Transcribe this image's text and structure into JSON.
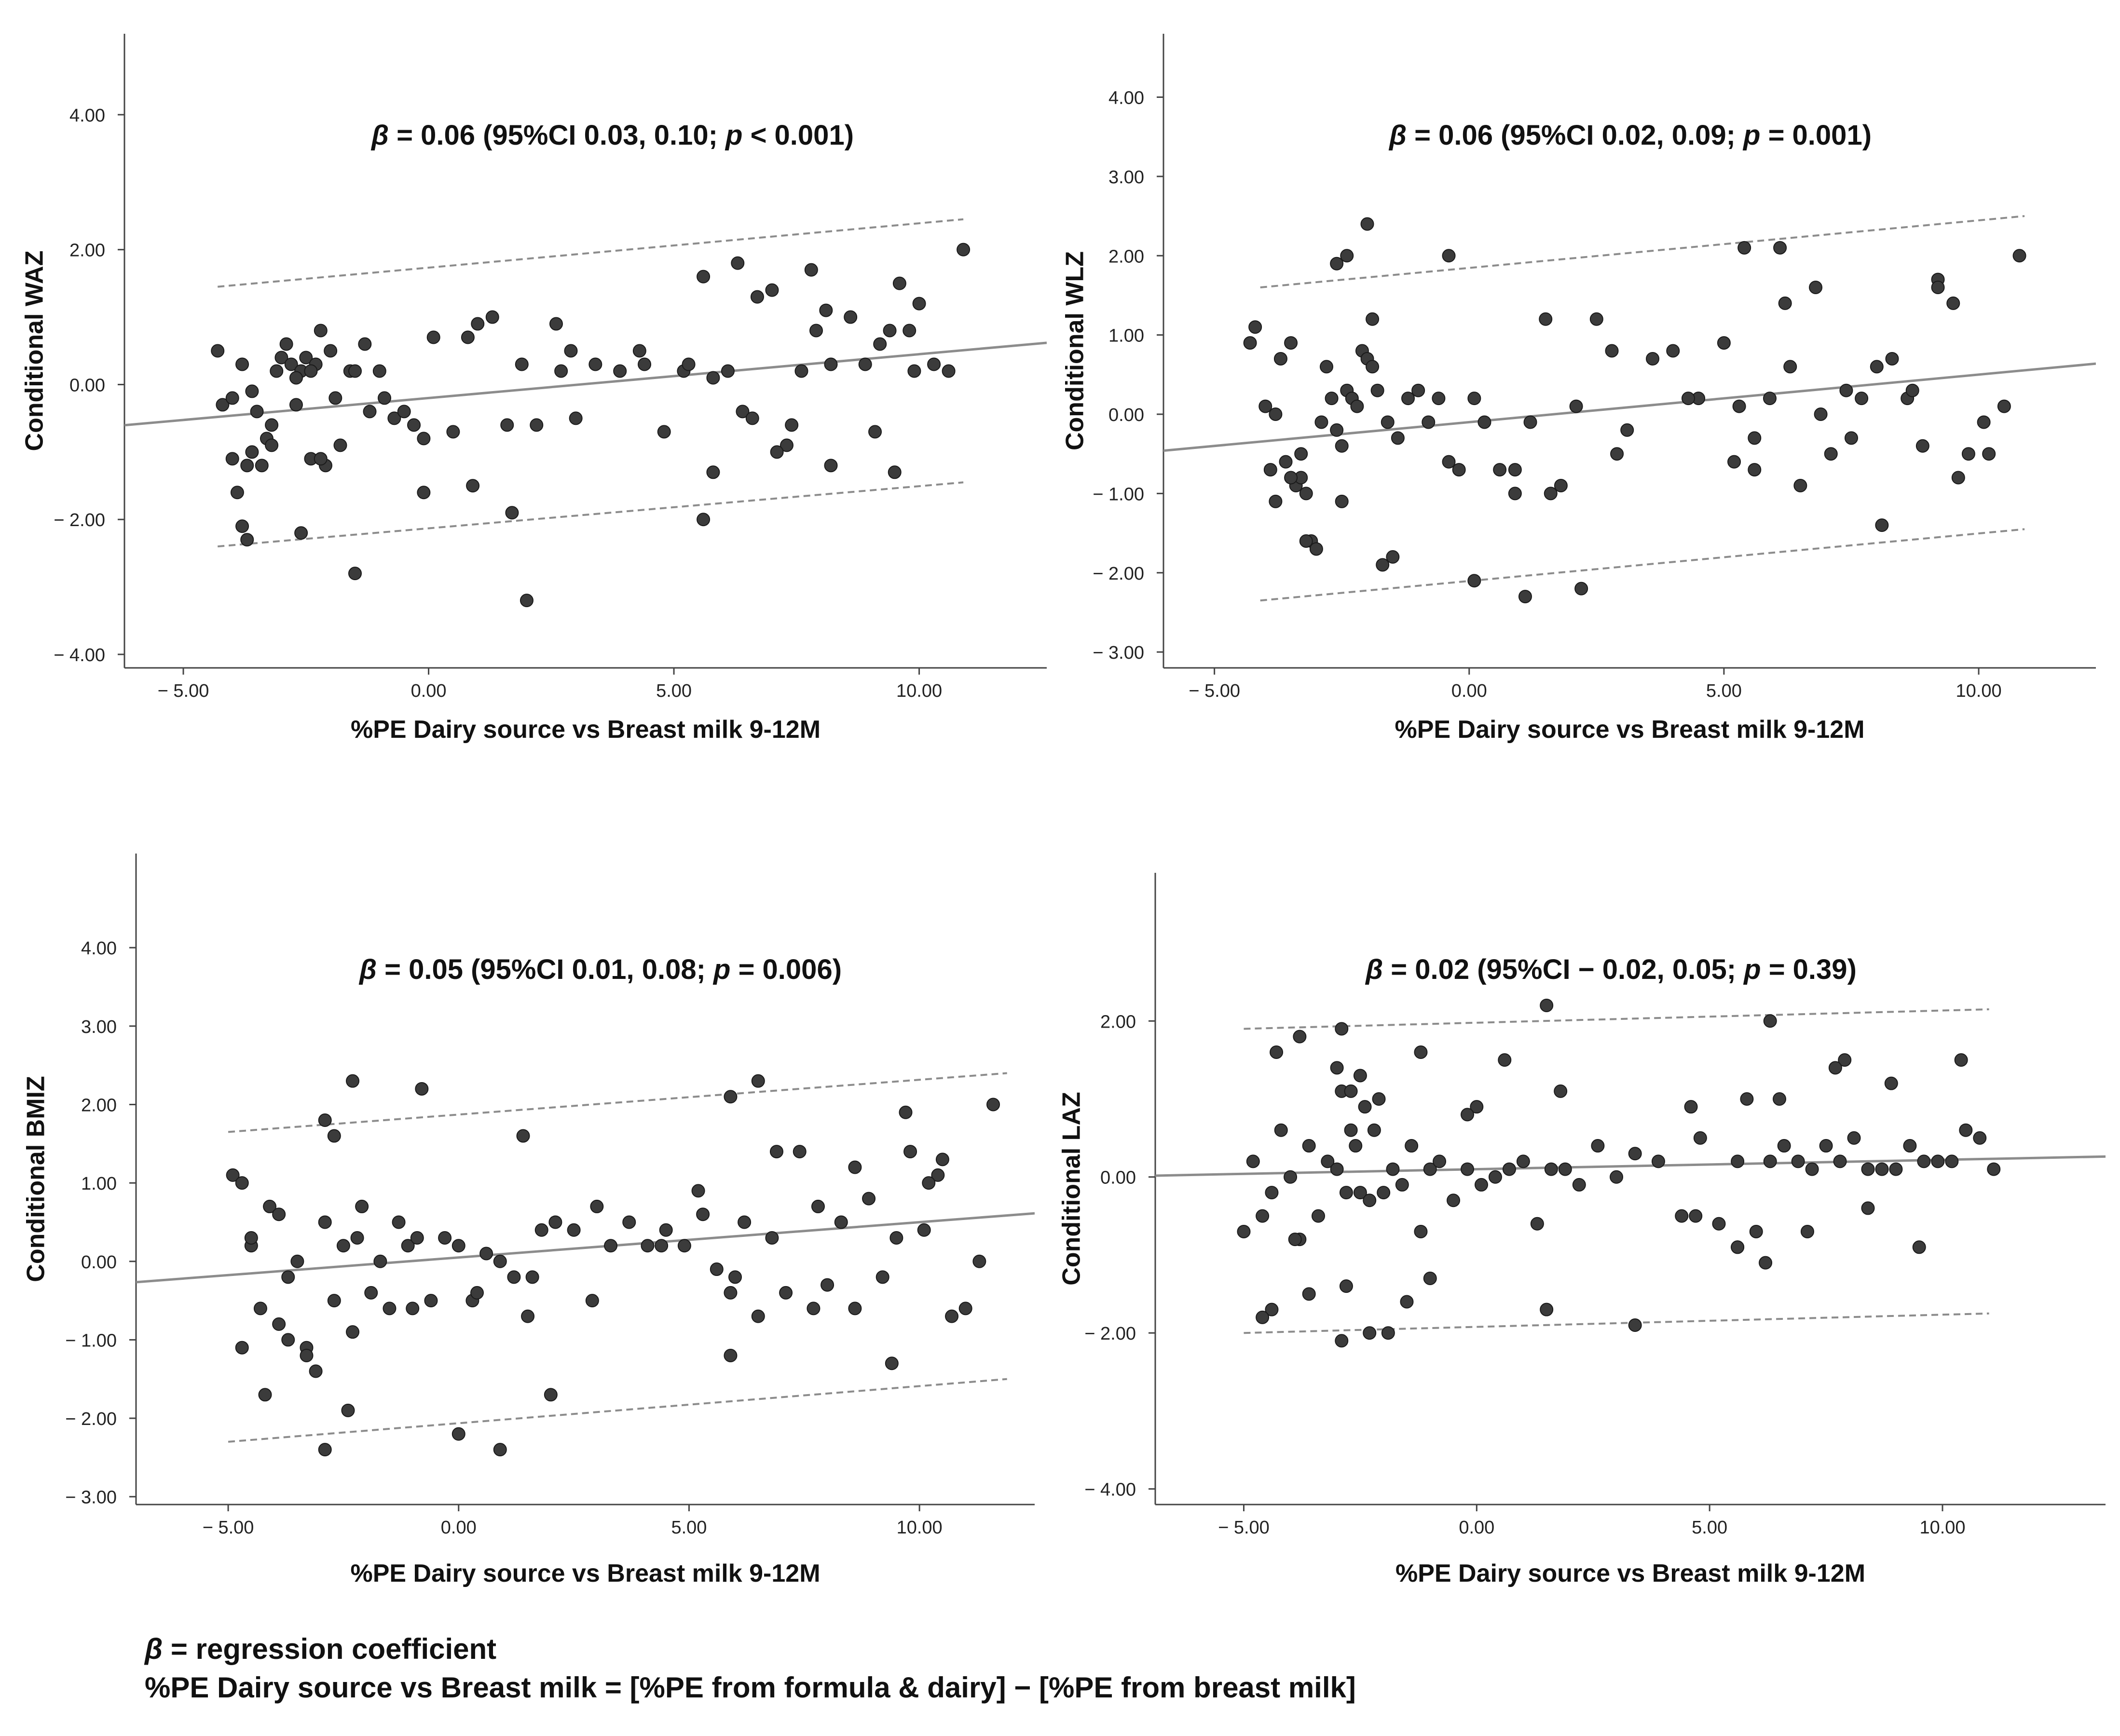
{
  "chart_data": [
    {
      "type": "scatter",
      "id": "waz",
      "title_parts": [
        "β",
        " = 0.06 (95%CI 0.03, 0.10; ",
        "p",
        " < 0.001)"
      ],
      "xlabel": "%PE Dairy source vs Breast milk 9-12M",
      "ylabel": "Conditional WAZ",
      "xlim": [
        -6.2,
        12.6
      ],
      "ylim": [
        -4.2,
        5.2
      ],
      "x_ticks": [
        -5,
        0,
        5,
        10
      ],
      "x_tick_labels": [
        "− 5.00",
        "0.00",
        "5.00",
        "10.00"
      ],
      "y_ticks": [
        4,
        2,
        0,
        -2,
        -4
      ],
      "y_tick_labels": [
        "4.00",
        "2.00",
        "0.00",
        "− 2.00",
        "− 4.00"
      ],
      "fit_line": {
        "intercept": -0.2,
        "slope": 0.065
      },
      "upper_band": {
        "x": [
          -4.3,
          10.9
        ],
        "y": [
          1.45,
          2.45
        ]
      },
      "lower_band": {
        "x": [
          -4.3,
          10.9
        ],
        "y": [
          -2.4,
          -1.45
        ]
      },
      "x": [
        -4.3,
        -4.2,
        -4.0,
        -3.9,
        -3.8,
        -3.7,
        -3.6,
        -3.5,
        -3.4,
        -3.3,
        -3.2,
        -3.1,
        -3.0,
        -2.9,
        -2.8,
        -2.7,
        -2.6,
        -2.5,
        -2.4,
        -2.3,
        -2.2,
        -2.1,
        -2.0,
        -1.9,
        -1.8,
        -1.6,
        -1.5,
        -1.3,
        -1.2,
        -1.0,
        -0.9,
        -0.7,
        -0.5,
        -0.3,
        -0.1,
        0.1,
        0.5,
        0.8,
        1.0,
        1.3,
        1.6,
        1.9,
        2.2,
        2.6,
        3.0,
        3.4,
        3.9,
        4.3,
        4.8,
        5.2,
        5.6,
        5.8,
        6.1,
        6.4,
        6.7,
        7.0,
        7.3,
        7.6,
        7.9,
        8.2,
        8.6,
        8.9,
        9.2,
        9.4,
        9.6,
        9.8,
        10.0,
        10.3,
        10.6,
        10.9,
        -4.0,
        -3.7,
        -3.2,
        -2.6,
        -2.2,
        -1.5,
        -0.1,
        0.9,
        1.7,
        2.0,
        2.9,
        5.6,
        5.8,
        6.6,
        7.1,
        8.2,
        9.1,
        9.9,
        -2.4,
        -3.8,
        -3.6,
        -2.7,
        2.7,
        4.4,
        5.3,
        6.3,
        7.4,
        7.8,
        8.1,
        9.5
      ],
      "y": [
        0.5,
        -0.3,
        -0.2,
        -1.6,
        0.3,
        -2.3,
        -0.1,
        -0.4,
        -1.2,
        -0.8,
        -0.9,
        0.2,
        0.4,
        0.6,
        0.3,
        -0.3,
        0.2,
        0.4,
        -1.1,
        0.3,
        0.8,
        -1.2,
        0.5,
        -0.2,
        -0.9,
        0.2,
        0.2,
        0.6,
        -0.4,
        0.2,
        -0.2,
        -0.5,
        -0.4,
        -0.6,
        -1.6,
        0.7,
        -0.7,
        0.7,
        0.9,
        1.0,
        -0.6,
        0.3,
        -0.6,
        0.9,
        -0.5,
        0.3,
        0.2,
        0.5,
        -0.7,
        0.2,
        1.6,
        0.1,
        0.2,
        -0.4,
        1.3,
        1.4,
        -0.9,
        0.2,
        0.8,
        0.3,
        1.0,
        0.3,
        0.6,
        0.8,
        1.5,
        0.8,
        1.2,
        0.3,
        0.2,
        2.0,
        -1.1,
        -1.2,
        -0.6,
        -2.2,
        -1.1,
        -2.8,
        -0.8,
        -1.5,
        -1.9,
        -3.2,
        0.5,
        -2.0,
        -1.3,
        -0.5,
        -1.0,
        -1.2,
        -0.7,
        0.2,
        0.2,
        -2.1,
        -1.0,
        0.1,
        0.2,
        0.3,
        0.3,
        1.8,
        -0.6,
        1.7,
        1.1,
        -1.3
      ]
    },
    {
      "type": "scatter",
      "id": "wlz",
      "title_parts": [
        "β",
        " = 0.06 (95%CI 0.02, 0.09; ",
        "p",
        " = 0.001)"
      ],
      "xlabel": "%PE Dairy source vs Breast milk 9-12M",
      "ylabel": "Conditional WLZ",
      "xlim": [
        -6.0,
        12.3
      ],
      "ylim": [
        -3.2,
        4.8
      ],
      "x_ticks": [
        -5,
        0,
        5,
        10
      ],
      "x_tick_labels": [
        "− 5.00",
        "0.00",
        "5.00",
        "10.00"
      ],
      "y_ticks": [
        4,
        3,
        2,
        1,
        0,
        -1,
        -2,
        -3
      ],
      "y_tick_labels": [
        "4.00",
        "3.00",
        "2.00",
        "1.00",
        "0.00",
        "− 1.00",
        "− 2.00",
        "− 3.00"
      ],
      "fit_line": {
        "intercept": -0.1,
        "slope": 0.06
      },
      "upper_band": {
        "x": [
          -4.1,
          10.9
        ],
        "y": [
          1.6,
          2.5
        ]
      },
      "lower_band": {
        "x": [
          -4.1,
          10.9
        ],
        "y": [
          -2.35,
          -1.45
        ]
      },
      "x": [
        -4.3,
        -4.2,
        -4.0,
        -3.9,
        -3.8,
        -3.7,
        -3.6,
        -3.5,
        -3.4,
        -3.3,
        -3.2,
        -3.1,
        -3.0,
        -2.9,
        -2.8,
        -2.7,
        -2.6,
        -2.5,
        -2.4,
        -2.3,
        -2.2,
        -2.1,
        -2.0,
        -1.9,
        -1.8,
        -1.6,
        -1.4,
        -1.2,
        -1.0,
        -0.8,
        -0.6,
        -0.4,
        -0.2,
        0.1,
        0.3,
        0.6,
        0.9,
        1.2,
        1.5,
        1.8,
        2.1,
        2.5,
        2.8,
        3.1,
        3.6,
        4.0,
        4.5,
        5.0,
        5.3,
        5.6,
        5.9,
        6.2,
        6.5,
        6.8,
        7.1,
        7.4,
        7.7,
        8.0,
        8.3,
        8.6,
        8.9,
        9.2,
        9.5,
        9.8,
        10.1,
        10.5,
        10.8,
        -2.4,
        -2.0,
        -1.9,
        -2.5,
        -3.2,
        -3.8,
        -1.5,
        -0.4,
        0.1,
        1.1,
        2.2,
        5.4,
        6.1,
        8.1,
        -3.5,
        -3.3,
        -2.6,
        -1.7,
        0.9,
        1.6,
        2.9,
        4.3,
        5.2,
        5.6,
        6.3,
        6.9,
        7.5,
        8.7,
        9.2,
        9.6,
        10.2
      ],
      "y": [
        0.9,
        1.1,
        0.1,
        -0.7,
        -1.1,
        0.7,
        -0.6,
        0.9,
        -0.9,
        -0.8,
        -1.0,
        -1.6,
        -1.7,
        -0.1,
        0.6,
        0.2,
        -0.2,
        -0.4,
        0.3,
        0.2,
        0.1,
        0.8,
        0.7,
        1.2,
        0.3,
        -0.1,
        -0.3,
        0.2,
        0.3,
        -0.1,
        0.2,
        -0.6,
        -0.7,
        0.2,
        -0.1,
        -0.7,
        -1.0,
        -0.1,
        1.2,
        -0.9,
        0.1,
        1.2,
        0.8,
        -0.2,
        0.7,
        0.8,
        0.2,
        0.9,
        0.1,
        -0.3,
        0.2,
        1.4,
        -0.9,
        1.6,
        -0.5,
        0.3,
        0.2,
        0.6,
        0.7,
        0.2,
        -0.4,
        1.7,
        1.4,
        -0.5,
        -0.1,
        0.1,
        2.0,
        2.0,
        2.4,
        0.6,
        -1.1,
        -1.6,
        0.0,
        -1.8,
        2.0,
        -2.1,
        -2.3,
        -2.2,
        2.1,
        2.1,
        -1.4,
        -0.8,
        -0.5,
        1.9,
        -1.9,
        -0.7,
        -1.0,
        -0.5,
        0.2,
        -0.6,
        -0.7,
        0.6,
        0.0,
        -0.3,
        0.3,
        1.6,
        -0.8,
        -0.5
      ]
    },
    {
      "type": "scatter",
      "id": "bmiz",
      "title_parts": [
        "β",
        " = 0.05 (95%CI 0.01, 0.08; ",
        "p",
        " = 0.006)"
      ],
      "xlabel": "%PE Dairy source vs Breast milk 9-12M",
      "ylabel": "Conditional BMIZ",
      "xlim": [
        -7.0,
        12.5
      ],
      "ylim": [
        -3.1,
        5.2
      ],
      "x_ticks": [
        -5,
        0,
        5,
        10
      ],
      "x_tick_labels": [
        "− 5.00",
        "0.00",
        "5.00",
        "10.00"
      ],
      "y_ticks": [
        4,
        3,
        2,
        1,
        0,
        -1,
        -2,
        -3
      ],
      "y_tick_labels": [
        "4.00",
        "3.00",
        "2.00",
        "1.00",
        "0.00",
        "− 1.00",
        "− 2.00",
        "− 3.00"
      ],
      "fit_line": {
        "intercept": 0.05,
        "slope": 0.045
      },
      "upper_band": {
        "x": [
          -5.0,
          11.9
        ],
        "y": [
          1.65,
          2.4
        ]
      },
      "lower_band": {
        "x": [
          -5.0,
          11.9
        ],
        "y": [
          -2.3,
          -1.5
        ]
      },
      "x": [
        -4.9,
        -4.7,
        -4.5,
        -4.3,
        -4.1,
        -3.9,
        -3.7,
        -3.5,
        -3.3,
        -3.1,
        -2.9,
        -2.7,
        -2.5,
        -2.3,
        -2.1,
        -1.9,
        -1.7,
        -1.5,
        -1.3,
        -1.1,
        -0.9,
        -0.6,
        -0.3,
        0.0,
        0.3,
        0.6,
        0.9,
        1.2,
        1.5,
        1.8,
        2.1,
        2.5,
        2.9,
        3.3,
        3.7,
        4.1,
        4.5,
        4.9,
        5.3,
        5.6,
        5.9,
        6.2,
        6.5,
        6.8,
        7.1,
        7.4,
        7.7,
        8.0,
        8.3,
        8.6,
        8.9,
        9.2,
        9.5,
        9.8,
        10.1,
        10.4,
        10.7,
        11.0,
        11.3,
        11.6,
        -2.3,
        -0.8,
        -2.9,
        1.4,
        5.9,
        6.5,
        -4.7,
        -4.5,
        -3.3,
        -2.9,
        -2.4,
        0.0,
        0.9,
        2.0,
        5.9,
        9.4,
        -4.2,
        -3.7,
        -2.2,
        -1.0,
        0.4,
        1.6,
        3.0,
        4.4,
        5.2,
        6.0,
        6.9,
        7.8,
        8.6,
        9.7,
        10.2,
        10.5,
        -2.7,
        -3.9
      ],
      "y": [
        1.1,
        -1.1,
        0.2,
        -0.6,
        0.7,
        -0.8,
        -0.2,
        0.0,
        -1.1,
        -1.4,
        0.5,
        -0.5,
        0.2,
        -0.9,
        0.7,
        -0.4,
        0.0,
        -0.6,
        0.5,
        0.2,
        0.3,
        -0.5,
        0.3,
        0.2,
        -0.5,
        0.1,
        0.0,
        -0.2,
        -0.7,
        0.4,
        0.5,
        0.4,
        -0.5,
        0.2,
        0.5,
        0.2,
        0.4,
        0.2,
        0.6,
        -0.1,
        -0.4,
        0.5,
        -0.7,
        0.3,
        -0.4,
        1.4,
        -0.6,
        -0.3,
        0.5,
        -0.6,
        0.8,
        -0.2,
        0.3,
        1.4,
        0.4,
        1.1,
        -0.7,
        -0.6,
        0.0,
        2.0,
        2.3,
        2.2,
        1.8,
        1.6,
        2.1,
        2.3,
        1.0,
        0.3,
        -1.2,
        -2.4,
        -1.9,
        -2.2,
        -2.4,
        -1.7,
        -1.2,
        -1.3,
        -1.7,
        -1.0,
        0.3,
        -0.6,
        -0.4,
        -0.2,
        0.7,
        0.2,
        0.9,
        -0.2,
        1.4,
        0.7,
        1.2,
        1.9,
        1.0,
        1.3,
        1.6,
        0.6
      ]
    },
    {
      "type": "scatter",
      "id": "laz",
      "title_parts": [
        "β",
        " = 0.02 (95%CI − 0.02, 0.05; ",
        "p",
        " = 0.39)"
      ],
      "xlabel": "%PE Dairy source vs Breast milk 9-12M",
      "ylabel": "Conditional LAZ",
      "xlim": [
        -6.9,
        13.5
      ],
      "ylim": [
        -4.2,
        3.9
      ],
      "x_ticks": [
        -5,
        0,
        5,
        10
      ],
      "x_tick_labels": [
        "− 5.00",
        "0.00",
        "5.00",
        "10.00"
      ],
      "y_ticks": [
        2,
        0,
        -2,
        -4
      ],
      "y_tick_labels": [
        "2.00",
        "0.00",
        "− 2.00",
        "− 4.00"
      ],
      "fit_line": {
        "intercept": 0.1,
        "slope": 0.012
      },
      "upper_band": {
        "x": [
          -5.0,
          11.0
        ],
        "y": [
          1.9,
          2.15
        ]
      },
      "lower_band": {
        "x": [
          -5.0,
          11.0
        ],
        "y": [
          -2.0,
          -1.75
        ]
      },
      "x": [
        -5.0,
        -4.8,
        -4.6,
        -4.4,
        -4.2,
        -4.0,
        -3.8,
        -3.6,
        -3.4,
        -3.2,
        -3.0,
        -2.9,
        -2.8,
        -2.7,
        -2.6,
        -2.5,
        -2.4,
        -2.3,
        -2.2,
        -2.0,
        -1.8,
        -1.6,
        -1.4,
        -1.2,
        -1.0,
        -0.8,
        -0.5,
        -0.2,
        0.1,
        0.4,
        0.7,
        1.0,
        1.3,
        1.6,
        1.9,
        2.2,
        2.6,
        3.0,
        3.4,
        3.9,
        4.4,
        4.8,
        5.2,
        5.6,
        6.0,
        6.3,
        6.6,
        6.9,
        7.2,
        7.5,
        7.8,
        8.1,
        8.4,
        8.7,
        9.0,
        9.3,
        9.6,
        9.9,
        10.2,
        10.5,
        10.8,
        11.1,
        -2.9,
        -3.0,
        -2.7,
        -4.3,
        -2.5,
        -2.1,
        -1.2,
        1.5,
        1.8,
        -2.9,
        -2.3,
        -3.6,
        -4.4,
        -4.6,
        -3.9,
        -1.5,
        0.0,
        5.6,
        6.2,
        7.1,
        8.4,
        9.5,
        0.6,
        1.5,
        3.4,
        4.7,
        5.8,
        6.3,
        7.9,
        8.9,
        10.4,
        -1.9,
        -2.8,
        4.6,
        5.6,
        6.5,
        7.7,
        -1.0,
        -0.2,
        -3.8
      ],
      "y": [
        -0.7,
        0.2,
        -0.5,
        -0.2,
        0.6,
        0.0,
        -0.8,
        0.4,
        -0.5,
        0.2,
        0.1,
        1.1,
        -0.2,
        0.6,
        0.4,
        -0.2,
        0.9,
        -0.3,
        0.6,
        -0.2,
        0.1,
        -0.1,
        0.4,
        -0.7,
        0.1,
        0.2,
        -0.3,
        0.1,
        -0.1,
        0.0,
        0.1,
        0.2,
        -0.6,
        0.1,
        0.1,
        -0.1,
        0.4,
        0.0,
        0.3,
        0.2,
        -0.5,
        0.5,
        -0.6,
        0.2,
        -0.7,
        0.2,
        0.4,
        0.2,
        0.1,
        0.4,
        0.2,
        0.5,
        0.1,
        0.1,
        0.1,
        0.4,
        0.2,
        0.2,
        0.2,
        0.6,
        0.5,
        0.1,
        1.9,
        1.4,
        1.1,
        1.6,
        1.3,
        1.0,
        1.6,
        2.2,
        1.1,
        -2.1,
        -2.0,
        -1.5,
        -1.7,
        -1.8,
        -0.8,
        -1.6,
        0.9,
        -0.9,
        -1.1,
        -0.7,
        -0.4,
        -0.9,
        1.5,
        -1.7,
        -1.9,
        -0.5,
        1.0,
        2.0,
        1.5,
        1.2,
        1.5,
        -2.0,
        -1.4,
        0.9,
        -0.9,
        1.0,
        1.4,
        -1.3,
        0.8,
        1.8
      ]
    }
  ],
  "footnotes": {
    "line1_symbol": "β",
    "line1_text": " = regression coefficient",
    "line2": "%PE Dairy source vs Breast milk = [%PE from formula & dairy] − [%PE from breast milk]"
  }
}
